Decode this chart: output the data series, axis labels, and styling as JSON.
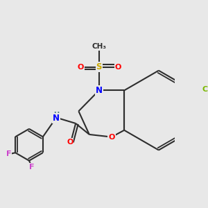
{
  "background_color": "#e8e8e8",
  "bond_color": "#2d2d2d",
  "atom_colors": {
    "N": "#0000ff",
    "O": "#ff0000",
    "S": "#ccaa00",
    "Cl": "#7ab800",
    "F": "#cc44cc",
    "H": "#4d8080",
    "C": "#2d2d2d"
  },
  "figsize": [
    3.0,
    3.0
  ],
  "dpi": 100
}
